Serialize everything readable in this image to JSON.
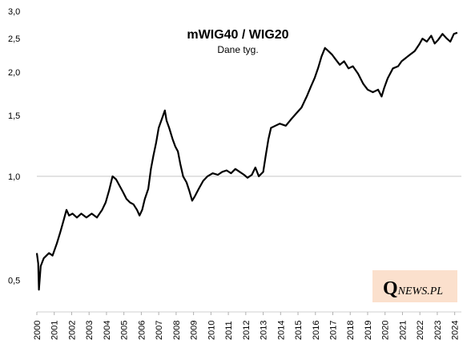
{
  "chart_data": {
    "type": "line",
    "title": "mWIG40 / WIG20",
    "subtitle": "Dane tyg.",
    "scale": "log",
    "ylim": [
      0.43,
      3.0
    ],
    "y_ticks": [
      {
        "value": 3.0,
        "label": "3,0"
      },
      {
        "value": 2.5,
        "label": "2,5"
      },
      {
        "value": 2.0,
        "label": "2,0"
      },
      {
        "value": 1.5,
        "label": "1,5"
      },
      {
        "value": 1.0,
        "label": "1,0"
      },
      {
        "value": 0.5,
        "label": "0,5"
      }
    ],
    "reference_line": 1.0,
    "x_tick_labels": [
      "2000",
      "2001",
      "2002",
      "2003",
      "2004",
      "2005",
      "2006",
      "2007",
      "2008",
      "2009",
      "2010",
      "2011",
      "2012",
      "2013",
      "2014",
      "2015",
      "2016",
      "2017",
      "2018",
      "2019",
      "2020",
      "2021",
      "2022",
      "2023",
      "2024"
    ],
    "xlim": [
      2000.0,
      2024.2
    ],
    "series": [
      {
        "color": "#000000",
        "points": [
          [
            2000.0,
            0.6
          ],
          [
            2000.08,
            0.56
          ],
          [
            2000.12,
            0.47
          ],
          [
            2000.22,
            0.55
          ],
          [
            2000.4,
            0.58
          ],
          [
            2000.7,
            0.6
          ],
          [
            2000.9,
            0.59
          ],
          [
            2001.15,
            0.64
          ],
          [
            2001.35,
            0.69
          ],
          [
            2001.55,
            0.75
          ],
          [
            2001.7,
            0.8
          ],
          [
            2001.85,
            0.77
          ],
          [
            2002.05,
            0.78
          ],
          [
            2002.3,
            0.76
          ],
          [
            2002.55,
            0.78
          ],
          [
            2002.85,
            0.76
          ],
          [
            2003.15,
            0.78
          ],
          [
            2003.45,
            0.76
          ],
          [
            2003.75,
            0.8
          ],
          [
            2003.95,
            0.84
          ],
          [
            2004.15,
            0.91
          ],
          [
            2004.35,
            1.0
          ],
          [
            2004.55,
            0.98
          ],
          [
            2004.75,
            0.94
          ],
          [
            2004.95,
            0.9
          ],
          [
            2005.15,
            0.86
          ],
          [
            2005.35,
            0.84
          ],
          [
            2005.55,
            0.83
          ],
          [
            2005.75,
            0.8
          ],
          [
            2005.9,
            0.77
          ],
          [
            2006.05,
            0.8
          ],
          [
            2006.2,
            0.86
          ],
          [
            2006.4,
            0.92
          ],
          [
            2006.55,
            1.05
          ],
          [
            2006.7,
            1.15
          ],
          [
            2006.85,
            1.25
          ],
          [
            2007.0,
            1.38
          ],
          [
            2007.15,
            1.45
          ],
          [
            2007.35,
            1.55
          ],
          [
            2007.45,
            1.45
          ],
          [
            2007.6,
            1.38
          ],
          [
            2007.8,
            1.28
          ],
          [
            2007.95,
            1.22
          ],
          [
            2008.1,
            1.18
          ],
          [
            2008.25,
            1.08
          ],
          [
            2008.4,
            1.0
          ],
          [
            2008.6,
            0.96
          ],
          [
            2008.75,
            0.91
          ],
          [
            2008.92,
            0.85
          ],
          [
            2009.1,
            0.88
          ],
          [
            2009.3,
            0.92
          ],
          [
            2009.55,
            0.97
          ],
          [
            2009.8,
            1.0
          ],
          [
            2010.1,
            1.02
          ],
          [
            2010.4,
            1.01
          ],
          [
            2010.65,
            1.03
          ],
          [
            2010.9,
            1.04
          ],
          [
            2011.15,
            1.02
          ],
          [
            2011.4,
            1.05
          ],
          [
            2011.65,
            1.03
          ],
          [
            2011.9,
            1.01
          ],
          [
            2012.1,
            0.99
          ],
          [
            2012.35,
            1.01
          ],
          [
            2012.55,
            1.06
          ],
          [
            2012.75,
            1.0
          ],
          [
            2013.0,
            1.03
          ],
          [
            2013.15,
            1.15
          ],
          [
            2013.3,
            1.28
          ],
          [
            2013.45,
            1.38
          ],
          [
            2013.7,
            1.4
          ],
          [
            2013.95,
            1.42
          ],
          [
            2014.3,
            1.4
          ],
          [
            2014.6,
            1.46
          ],
          [
            2014.9,
            1.52
          ],
          [
            2015.2,
            1.58
          ],
          [
            2015.5,
            1.7
          ],
          [
            2015.75,
            1.82
          ],
          [
            2015.95,
            1.92
          ],
          [
            2016.15,
            2.05
          ],
          [
            2016.35,
            2.22
          ],
          [
            2016.55,
            2.35
          ],
          [
            2016.75,
            2.3
          ],
          [
            2016.95,
            2.25
          ],
          [
            2017.15,
            2.18
          ],
          [
            2017.4,
            2.1
          ],
          [
            2017.65,
            2.15
          ],
          [
            2017.9,
            2.05
          ],
          [
            2018.15,
            2.08
          ],
          [
            2018.45,
            1.98
          ],
          [
            2018.75,
            1.85
          ],
          [
            2019.0,
            1.78
          ],
          [
            2019.3,
            1.75
          ],
          [
            2019.6,
            1.78
          ],
          [
            2019.8,
            1.7
          ],
          [
            2019.95,
            1.8
          ],
          [
            2020.15,
            1.92
          ],
          [
            2020.45,
            2.05
          ],
          [
            2020.75,
            2.08
          ],
          [
            2020.95,
            2.15
          ],
          [
            2021.2,
            2.2
          ],
          [
            2021.45,
            2.25
          ],
          [
            2021.7,
            2.3
          ],
          [
            2021.95,
            2.4
          ],
          [
            2022.15,
            2.5
          ],
          [
            2022.4,
            2.45
          ],
          [
            2022.65,
            2.55
          ],
          [
            2022.85,
            2.42
          ],
          [
            2023.05,
            2.48
          ],
          [
            2023.3,
            2.58
          ],
          [
            2023.55,
            2.5
          ],
          [
            2023.75,
            2.45
          ],
          [
            2023.95,
            2.58
          ],
          [
            2024.15,
            2.6
          ]
        ]
      }
    ]
  },
  "logo": {
    "initial": "Q",
    "rest": "NEWS.PL"
  }
}
